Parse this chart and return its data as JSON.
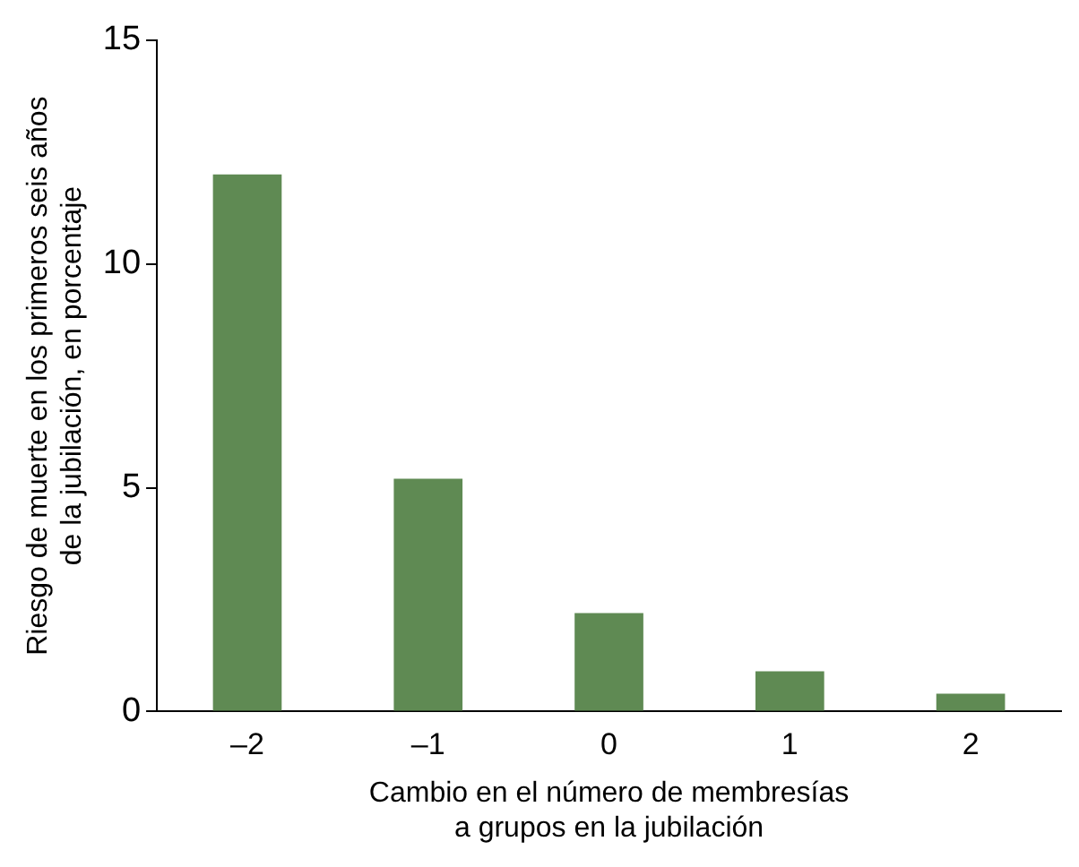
{
  "chart_data": {
    "type": "bar",
    "xlabel": "Cambio en el número de membresías\na grupos en la jubilación",
    "ylabel": "Riesgo de muerte en los primeros seis años\nde la jubilación, en porcentaje",
    "categories": [
      "–2",
      "–1",
      "0",
      "1",
      "2"
    ],
    "values": [
      12,
      5.2,
      2.2,
      0.9,
      0.4
    ],
    "color": "#5f8a53",
    "ylim": [
      0,
      15
    ],
    "yticks": [
      0,
      5,
      10,
      15
    ],
    "grid": false,
    "legend": false
  }
}
